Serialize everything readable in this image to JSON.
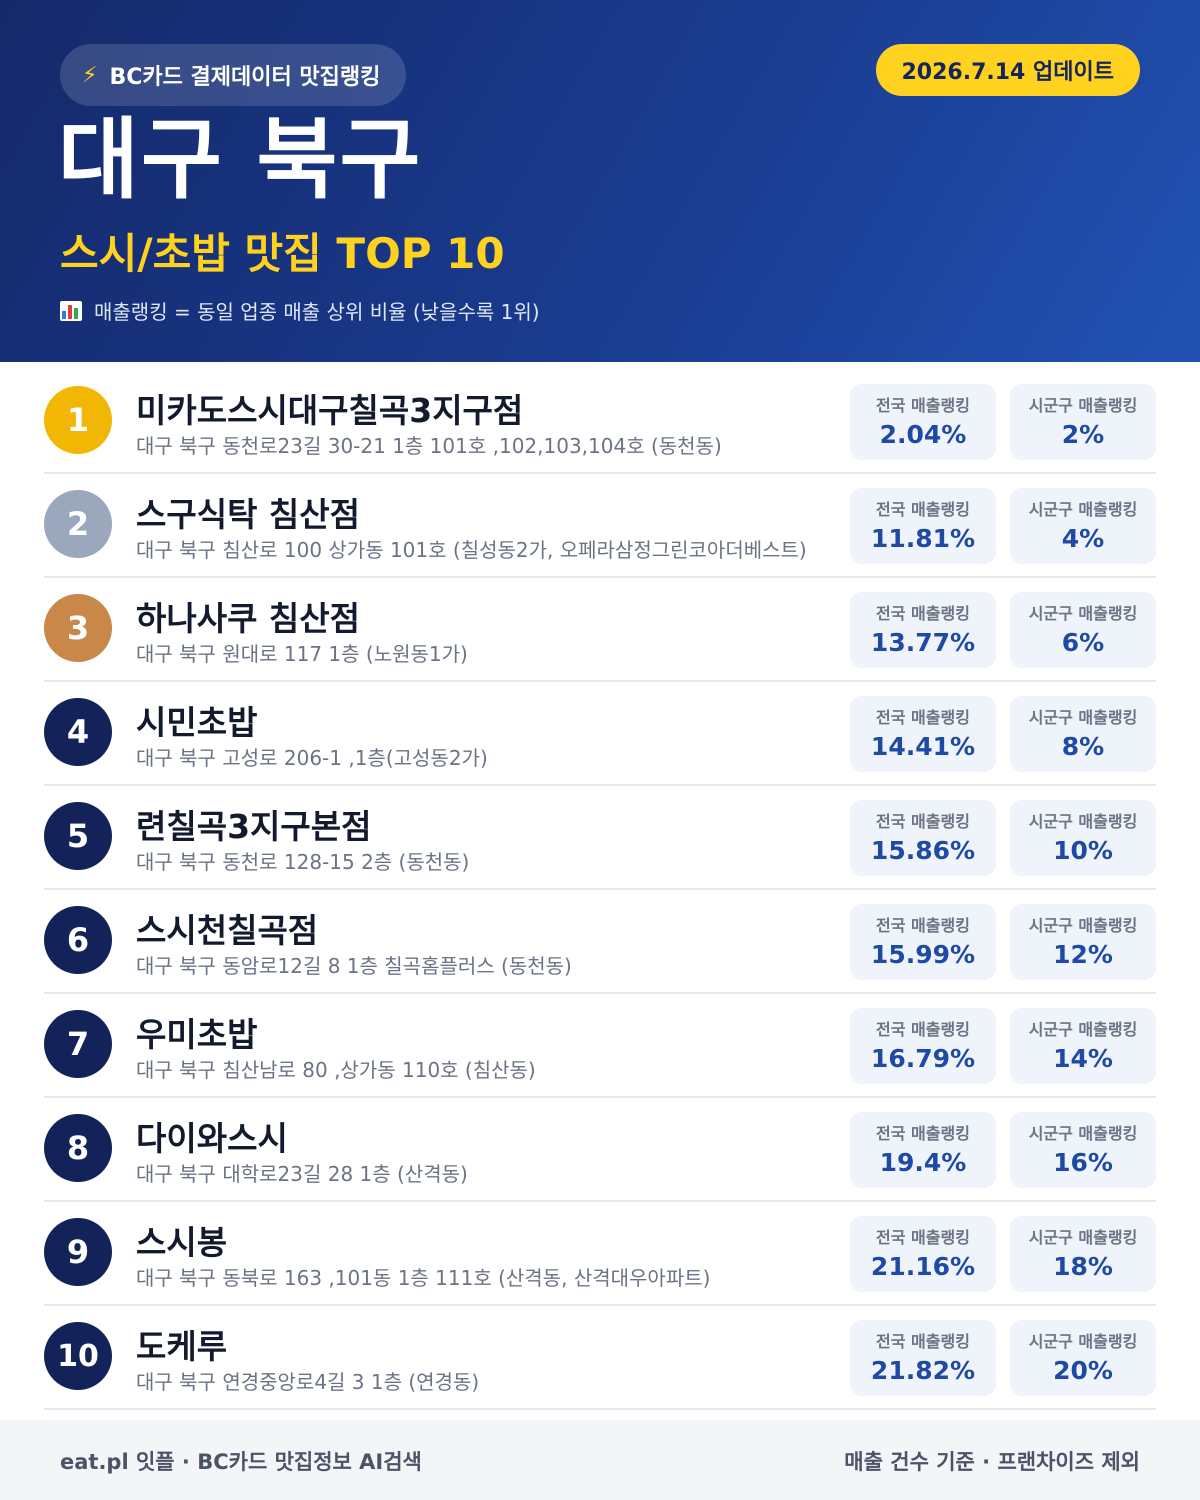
{
  "header": {
    "source_icon": "lightning-bolt-icon",
    "source_label": "BC카드 결제데이터 맛집랭킹",
    "update_label": "2026.7.14 업데이트",
    "region": "대구 북구",
    "category": "스시/초밥 맛집 TOP 10",
    "note_icon": "bar-chart-icon",
    "note": "매출랭킹 = 동일 업종 매출 상위 비율 (낮을수록 1위)"
  },
  "labels": {
    "national": "전국 매출랭킹",
    "local": "시군구 매출랭킹"
  },
  "colors": {
    "header_bg": "#1a3b8f",
    "accent_yellow": "#ffd21f",
    "rank_gold": "#f2b705",
    "rank_silver": "#9aa7bd",
    "rank_bronze": "#c9874a",
    "rank_default": "#13235a",
    "stat_value": "#1e49a5"
  },
  "items": [
    {
      "rank": "1",
      "name": "미카도스시대구칠곡3지구점",
      "address": "대구 북구 동천로23길 30-21 1층 101호 ,102,103,104호 (동천동)",
      "national": "2.04%",
      "local": "2%"
    },
    {
      "rank": "2",
      "name": "스구식탁 침산점",
      "address": "대구 북구 침산로 100 상가동 101호 (칠성동2가, 오페라삼정그린코아더베스트)",
      "national": "11.81%",
      "local": "4%"
    },
    {
      "rank": "3",
      "name": "하나사쿠 침산점",
      "address": "대구 북구 원대로 117 1층 (노원동1가)",
      "national": "13.77%",
      "local": "6%"
    },
    {
      "rank": "4",
      "name": "시민초밥",
      "address": "대구 북구 고성로 206-1 ,1층(고성동2가)",
      "national": "14.41%",
      "local": "8%"
    },
    {
      "rank": "5",
      "name": "련칠곡3지구본점",
      "address": "대구 북구 동천로 128-15 2층 (동천동)",
      "national": "15.86%",
      "local": "10%"
    },
    {
      "rank": "6",
      "name": "스시천칠곡점",
      "address": "대구 북구 동암로12길 8 1층 칠곡홈플러스 (동천동)",
      "national": "15.99%",
      "local": "12%"
    },
    {
      "rank": "7",
      "name": "우미초밥",
      "address": "대구 북구 침산남로 80 ,상가동 110호 (침산동)",
      "national": "16.79%",
      "local": "14%"
    },
    {
      "rank": "8",
      "name": "다이와스시",
      "address": "대구 북구 대학로23길 28 1층 (산격동)",
      "national": "19.4%",
      "local": "16%"
    },
    {
      "rank": "9",
      "name": "스시봉",
      "address": "대구 북구 동북로 163 ,101동 1층 111호 (산격동, 산격대우아파트)",
      "national": "21.16%",
      "local": "18%"
    },
    {
      "rank": "10",
      "name": "도케루",
      "address": "대구 북구 연경중앙로4길 3 1층 (연경동)",
      "national": "21.82%",
      "local": "20%"
    }
  ],
  "footer": {
    "left": "eat.pl 잇플 · BC카드 맛집정보 AI검색",
    "right": "매출 건수 기준 · 프랜차이즈 제외"
  }
}
